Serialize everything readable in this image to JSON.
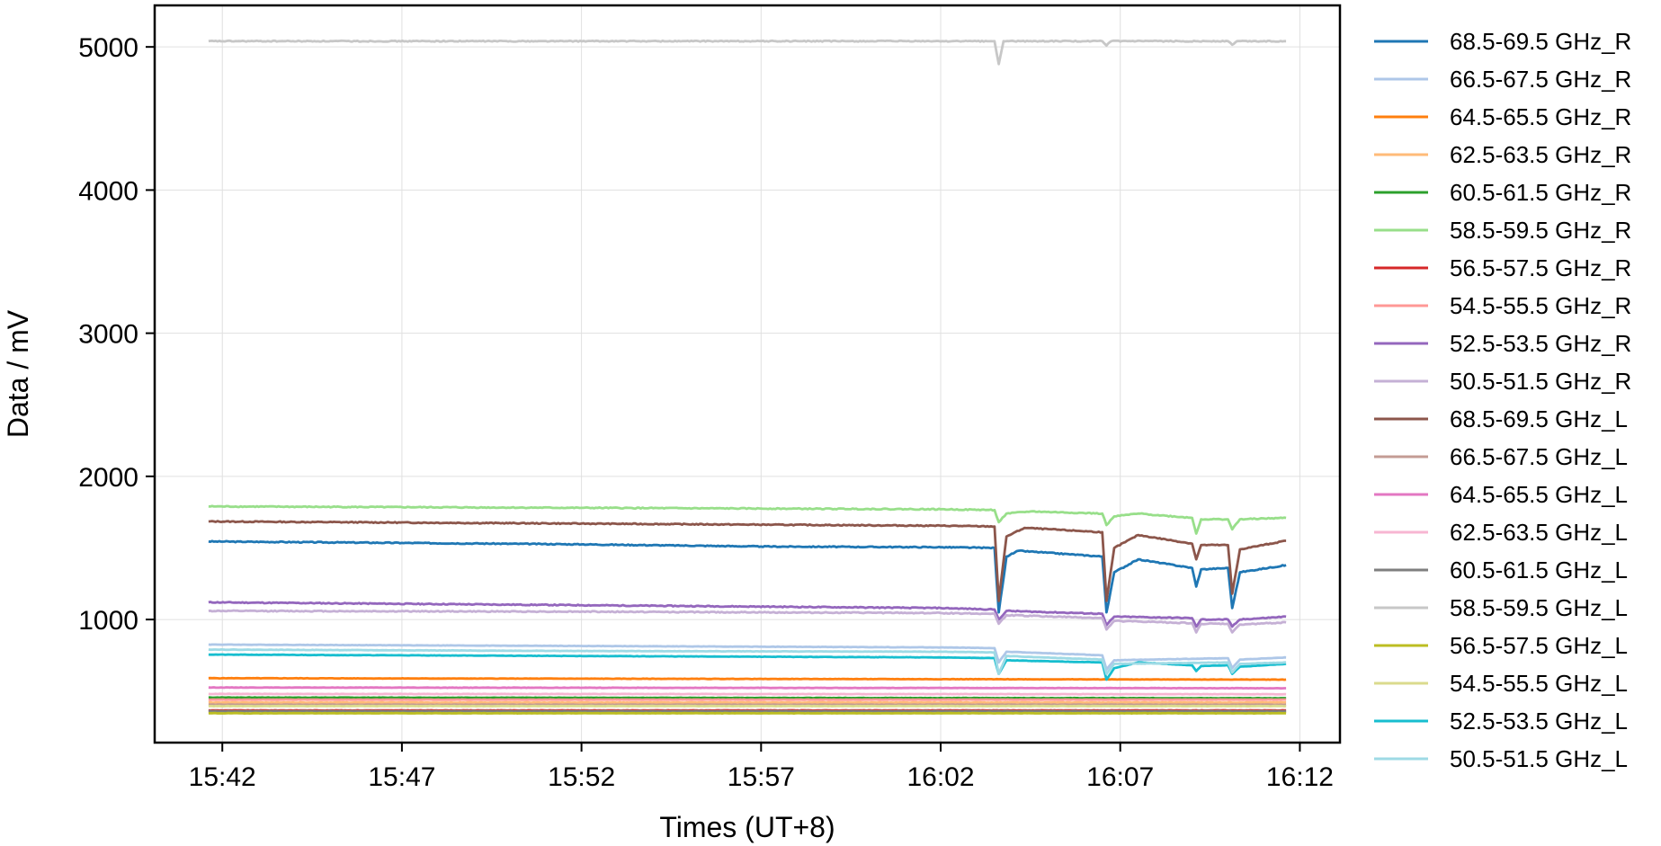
{
  "chart_data": {
    "type": "line",
    "title": "",
    "xlabel": "Times (UT+8)",
    "ylabel": "Data / mV",
    "x_ticks": [
      "15:42",
      "15:47",
      "15:52",
      "15:57",
      "16:02",
      "16:07",
      "16:12"
    ],
    "x_range": [
      "15:40:07",
      "16:13:07"
    ],
    "x_start": "15:41:37",
    "x_end": "16:11:37",
    "y_ticks": [
      1000,
      2000,
      3000,
      4000,
      5000
    ],
    "ylim": [
      140,
      5290
    ],
    "grid": true,
    "legend_position": "right-outside",
    "events": [
      "16:03:37",
      "16:06:37",
      "16:09:07",
      "16:10:07"
    ],
    "series": [
      {
        "name": "68.5-69.5 GHz_R",
        "color": "#1f77b4",
        "points": [
          [
            "15:41:37",
            1545
          ],
          [
            "15:47:00",
            1535
          ],
          [
            "15:52:00",
            1525
          ],
          [
            "15:57:00",
            1510
          ],
          [
            "16:02:00",
            1505
          ],
          [
            "16:03:30",
            1500
          ],
          [
            "16:03:37",
            1050
          ],
          [
            "16:03:50",
            1440
          ],
          [
            "16:04:10",
            1480
          ],
          [
            "16:06:30",
            1440
          ],
          [
            "16:06:37",
            1050
          ],
          [
            "16:06:50",
            1330
          ],
          [
            "16:07:30",
            1420
          ],
          [
            "16:09:00",
            1360
          ],
          [
            "16:09:07",
            1230
          ],
          [
            "16:09:15",
            1350
          ],
          [
            "16:10:00",
            1360
          ],
          [
            "16:10:07",
            1080
          ],
          [
            "16:10:20",
            1330
          ],
          [
            "16:11:37",
            1380
          ]
        ]
      },
      {
        "name": "66.5-67.5 GHz_R",
        "color": "#aec7e8",
        "points": [
          [
            "15:41:37",
            825
          ],
          [
            "15:52:00",
            815
          ],
          [
            "16:02:00",
            805
          ],
          [
            "16:03:30",
            800
          ],
          [
            "16:03:37",
            700
          ],
          [
            "16:03:50",
            775
          ],
          [
            "16:06:30",
            750
          ],
          [
            "16:06:37",
            650
          ],
          [
            "16:06:50",
            715
          ],
          [
            "16:10:00",
            730
          ],
          [
            "16:10:07",
            660
          ],
          [
            "16:10:20",
            720
          ],
          [
            "16:11:37",
            735
          ]
        ]
      },
      {
        "name": "64.5-65.5 GHz_R",
        "color": "#ff7f0e",
        "points": [
          [
            "15:41:37",
            590
          ],
          [
            "16:11:37",
            580
          ]
        ]
      },
      {
        "name": "62.5-63.5 GHz_R",
        "color": "#ffbb78",
        "points": [
          [
            "15:41:37",
            420
          ],
          [
            "16:11:37",
            420
          ]
        ]
      },
      {
        "name": "60.5-61.5 GHz_R",
        "color": "#2ca02c",
        "points": [
          [
            "15:41:37",
            455
          ],
          [
            "16:11:37",
            450
          ]
        ]
      },
      {
        "name": "58.5-59.5 GHz_R",
        "color": "#98df8a",
        "points": [
          [
            "15:41:37",
            1790
          ],
          [
            "15:52:00",
            1780
          ],
          [
            "16:02:00",
            1770
          ],
          [
            "16:03:30",
            1765
          ],
          [
            "16:03:37",
            1680
          ],
          [
            "16:03:50",
            1740
          ],
          [
            "16:04:30",
            1755
          ],
          [
            "16:06:30",
            1740
          ],
          [
            "16:06:37",
            1660
          ],
          [
            "16:06:50",
            1720
          ],
          [
            "16:07:30",
            1740
          ],
          [
            "16:09:00",
            1710
          ],
          [
            "16:09:07",
            1600
          ],
          [
            "16:09:15",
            1700
          ],
          [
            "16:10:00",
            1700
          ],
          [
            "16:10:07",
            1630
          ],
          [
            "16:10:20",
            1700
          ],
          [
            "16:11:37",
            1710
          ]
        ]
      },
      {
        "name": "56.5-57.5 GHz_R",
        "color": "#d62728",
        "points": [
          [
            "15:41:37",
            365
          ],
          [
            "16:11:37",
            365
          ]
        ]
      },
      {
        "name": "54.5-55.5 GHz_R",
        "color": "#ff9896",
        "points": [
          [
            "15:41:37",
            440
          ],
          [
            "16:11:37",
            440
          ]
        ]
      },
      {
        "name": "52.5-53.5 GHz_R",
        "color": "#9467bd",
        "points": [
          [
            "15:41:37",
            1120
          ],
          [
            "15:52:00",
            1100
          ],
          [
            "16:02:00",
            1080
          ],
          [
            "16:03:30",
            1070
          ],
          [
            "16:03:37",
            1000
          ],
          [
            "16:03:50",
            1060
          ],
          [
            "16:06:30",
            1040
          ],
          [
            "16:06:37",
            960
          ],
          [
            "16:06:50",
            1020
          ],
          [
            "16:09:00",
            1010
          ],
          [
            "16:09:07",
            950
          ],
          [
            "16:09:15",
            1000
          ],
          [
            "16:10:00",
            1000
          ],
          [
            "16:10:07",
            950
          ],
          [
            "16:10:20",
            1000
          ],
          [
            "16:11:37",
            1020
          ]
        ]
      },
      {
        "name": "50.5-51.5 GHz_R",
        "color": "#c5b0d5",
        "points": [
          [
            "15:41:37",
            1060
          ],
          [
            "15:52:00",
            1055
          ],
          [
            "16:02:00",
            1045
          ],
          [
            "16:03:30",
            1040
          ],
          [
            "16:03:37",
            970
          ],
          [
            "16:03:50",
            1030
          ],
          [
            "16:06:30",
            1010
          ],
          [
            "16:06:37",
            930
          ],
          [
            "16:06:50",
            990
          ],
          [
            "16:09:00",
            975
          ],
          [
            "16:09:07",
            910
          ],
          [
            "16:09:15",
            970
          ],
          [
            "16:10:00",
            970
          ],
          [
            "16:10:07",
            910
          ],
          [
            "16:10:20",
            965
          ],
          [
            "16:11:37",
            980
          ]
        ]
      },
      {
        "name": "68.5-69.5 GHz_L",
        "color": "#8c564b",
        "points": [
          [
            "15:41:37",
            1685
          ],
          [
            "15:52:00",
            1670
          ],
          [
            "16:02:00",
            1655
          ],
          [
            "16:03:30",
            1650
          ],
          [
            "16:03:37",
            1130
          ],
          [
            "16:03:50",
            1580
          ],
          [
            "16:04:20",
            1640
          ],
          [
            "16:06:30",
            1610
          ],
          [
            "16:06:37",
            1130
          ],
          [
            "16:06:50",
            1500
          ],
          [
            "16:07:30",
            1590
          ],
          [
            "16:09:00",
            1530
          ],
          [
            "16:09:07",
            1420
          ],
          [
            "16:09:15",
            1520
          ],
          [
            "16:10:00",
            1520
          ],
          [
            "16:10:07",
            1180
          ],
          [
            "16:10:20",
            1490
          ],
          [
            "16:11:37",
            1550
          ]
        ]
      },
      {
        "name": "66.5-67.5 GHz_L",
        "color": "#c49c94",
        "points": [
          [
            "15:41:37",
            405
          ],
          [
            "16:11:37",
            405
          ]
        ]
      },
      {
        "name": "64.5-65.5 GHz_L",
        "color": "#e377c2",
        "points": [
          [
            "15:41:37",
            525
          ],
          [
            "16:11:37",
            520
          ]
        ]
      },
      {
        "name": "62.5-63.5 GHz_L",
        "color": "#f7b6d2",
        "points": [
          [
            "15:41:37",
            480
          ],
          [
            "16:11:37",
            478
          ]
        ]
      },
      {
        "name": "60.5-61.5 GHz_L",
        "color": "#7f7f7f",
        "points": [
          [
            "15:41:37",
            360
          ],
          [
            "16:11:37",
            360
          ]
        ]
      },
      {
        "name": "58.5-59.5 GHz_L",
        "color": "#c7c7c7",
        "points": [
          [
            "15:41:37",
            5040
          ],
          [
            "16:03:30",
            5040
          ],
          [
            "16:03:37",
            4880
          ],
          [
            "16:03:45",
            5040
          ],
          [
            "16:06:30",
            5040
          ],
          [
            "16:06:37",
            5010
          ],
          [
            "16:06:45",
            5040
          ],
          [
            "16:10:00",
            5040
          ],
          [
            "16:10:07",
            5015
          ],
          [
            "16:10:15",
            5040
          ],
          [
            "16:11:37",
            5040
          ]
        ]
      },
      {
        "name": "56.5-57.5 GHz_L",
        "color": "#bcbd22",
        "points": [
          [
            "15:41:37",
            345
          ],
          [
            "16:11:37",
            345
          ]
        ]
      },
      {
        "name": "54.5-55.5 GHz_L",
        "color": "#dbdb8d",
        "points": [
          [
            "15:41:37",
            395
          ],
          [
            "16:11:37",
            395
          ]
        ]
      },
      {
        "name": "52.5-53.5 GHz_L",
        "color": "#17becf",
        "points": [
          [
            "15:41:37",
            755
          ],
          [
            "15:52:00",
            745
          ],
          [
            "16:02:00",
            735
          ],
          [
            "16:03:30",
            730
          ],
          [
            "16:03:37",
            620
          ],
          [
            "16:03:50",
            715
          ],
          [
            "16:06:30",
            700
          ],
          [
            "16:06:37",
            580
          ],
          [
            "16:06:50",
            660
          ],
          [
            "16:07:30",
            700
          ],
          [
            "16:09:00",
            680
          ],
          [
            "16:09:07",
            640
          ],
          [
            "16:09:15",
            675
          ],
          [
            "16:10:00",
            680
          ],
          [
            "16:10:07",
            620
          ],
          [
            "16:10:20",
            670
          ],
          [
            "16:11:37",
            690
          ]
        ]
      },
      {
        "name": "50.5-51.5 GHz_L",
        "color": "#9edae5",
        "points": [
          [
            "15:41:37",
            790
          ],
          [
            "15:52:00",
            780
          ],
          [
            "16:02:00",
            775
          ],
          [
            "16:03:30",
            770
          ],
          [
            "16:03:37",
            620
          ],
          [
            "16:03:50",
            745
          ],
          [
            "16:06:30",
            720
          ],
          [
            "16:06:37",
            620
          ],
          [
            "16:06:50",
            690
          ],
          [
            "16:10:00",
            700
          ],
          [
            "16:10:07",
            630
          ],
          [
            "16:10:20",
            690
          ],
          [
            "16:11:37",
            700
          ]
        ]
      }
    ]
  }
}
